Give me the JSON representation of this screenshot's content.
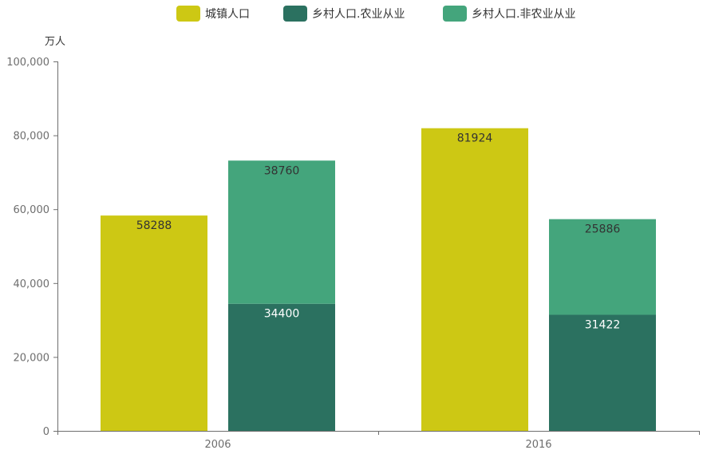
{
  "chart_data": {
    "type": "bar",
    "stacked": true,
    "categories": [
      "2006",
      "2016"
    ],
    "ylabel": "万人",
    "ylim": [
      0,
      100000
    ],
    "yticks": [
      "0",
      "20,000",
      "40,000",
      "60,000",
      "80,000",
      "100,000"
    ],
    "legend_position": "top",
    "grid": false,
    "series": [
      {
        "name": "城镇人口",
        "stack": "urban",
        "color": "#cdc814",
        "label_color": "#333333",
        "values": [
          58288,
          81924
        ]
      },
      {
        "name": "乡村人口.农业从业",
        "stack": "rural",
        "color": "#2b7160",
        "label_color": "#ffffff",
        "values": [
          34400,
          31422
        ]
      },
      {
        "name": "乡村人口.非农业从业",
        "stack": "rural",
        "color": "#44a57c",
        "label_color": "#333333",
        "values": [
          38760,
          25886
        ]
      }
    ]
  }
}
